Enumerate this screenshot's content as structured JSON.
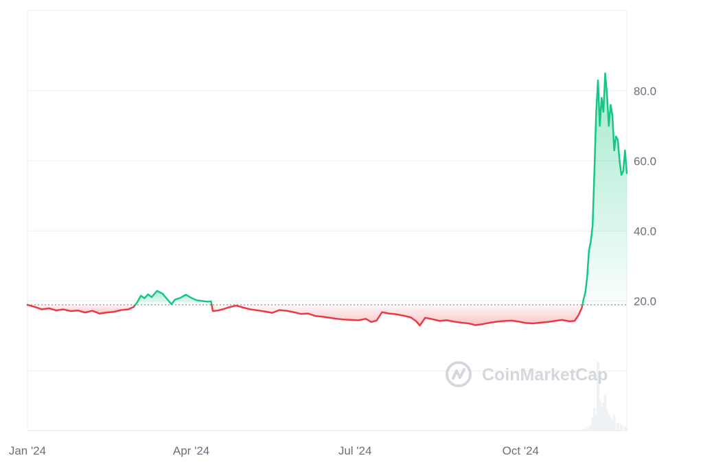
{
  "chart_data": {
    "type": "area",
    "baseline": 18.9,
    "ylim": [
      -17,
      103
    ],
    "y_ticks": [
      20,
      40,
      60,
      80
    ],
    "y_tick_labels": [
      "20.0",
      "40.0",
      "60.0",
      "80.0"
    ],
    "x_range": [
      "2024-01-01",
      "2024-11-29"
    ],
    "x_ticks": [
      "2024-01-01",
      "2024-04-01",
      "2024-07-01",
      "2024-10-01"
    ],
    "x_tick_labels": [
      "Jan '24",
      "Apr '24",
      "Jul '24",
      "Oct '24"
    ],
    "series": [
      {
        "points": [
          [
            "2024-01-01",
            18.9
          ],
          [
            "2024-01-05",
            18.3
          ],
          [
            "2024-01-09",
            17.6
          ],
          [
            "2024-01-13",
            17.9
          ],
          [
            "2024-01-17",
            17.3
          ],
          [
            "2024-01-21",
            17.6
          ],
          [
            "2024-01-25",
            17.1
          ],
          [
            "2024-01-29",
            17.3
          ],
          [
            "2024-02-02",
            16.7
          ],
          [
            "2024-02-06",
            17.2
          ],
          [
            "2024-02-10",
            16.4
          ],
          [
            "2024-02-14",
            16.7
          ],
          [
            "2024-02-18",
            16.9
          ],
          [
            "2024-02-22",
            17.4
          ],
          [
            "2024-02-26",
            17.6
          ],
          [
            "2024-02-29",
            18.3
          ],
          [
            "2024-03-02",
            19.6
          ],
          [
            "2024-03-04",
            21.5
          ],
          [
            "2024-03-06",
            20.8
          ],
          [
            "2024-03-08",
            21.9
          ],
          [
            "2024-03-10",
            21.1
          ],
          [
            "2024-03-13",
            22.9
          ],
          [
            "2024-03-16",
            22.1
          ],
          [
            "2024-03-19",
            20.3
          ],
          [
            "2024-03-21",
            19.1
          ],
          [
            "2024-03-23",
            20.4
          ],
          [
            "2024-03-26",
            20.9
          ],
          [
            "2024-03-29",
            21.8
          ],
          [
            "2024-04-01",
            20.9
          ],
          [
            "2024-04-04",
            20.2
          ],
          [
            "2024-04-07",
            20.0
          ],
          [
            "2024-04-10",
            19.8
          ],
          [
            "2024-04-12",
            19.9
          ],
          [
            "2024-04-13",
            17.1
          ],
          [
            "2024-04-16",
            17.3
          ],
          [
            "2024-04-19",
            17.7
          ],
          [
            "2024-04-22",
            18.2
          ],
          [
            "2024-04-26",
            18.7
          ],
          [
            "2024-04-30",
            18.1
          ],
          [
            "2024-05-04",
            17.6
          ],
          [
            "2024-05-08",
            17.3
          ],
          [
            "2024-05-12",
            17.0
          ],
          [
            "2024-05-16",
            16.6
          ],
          [
            "2024-05-20",
            17.4
          ],
          [
            "2024-05-24",
            17.2
          ],
          [
            "2024-05-28",
            16.8
          ],
          [
            "2024-06-01",
            16.3
          ],
          [
            "2024-06-05",
            16.4
          ],
          [
            "2024-06-09",
            15.7
          ],
          [
            "2024-06-13",
            15.5
          ],
          [
            "2024-06-17",
            15.2
          ],
          [
            "2024-06-21",
            14.9
          ],
          [
            "2024-06-25",
            14.7
          ],
          [
            "2024-06-29",
            14.6
          ],
          [
            "2024-07-03",
            14.5
          ],
          [
            "2024-07-07",
            14.9
          ],
          [
            "2024-07-10",
            14.0
          ],
          [
            "2024-07-13",
            14.4
          ],
          [
            "2024-07-16",
            16.8
          ],
          [
            "2024-07-20",
            16.4
          ],
          [
            "2024-07-24",
            16.2
          ],
          [
            "2024-07-28",
            15.8
          ],
          [
            "2024-08-01",
            15.3
          ],
          [
            "2024-08-04",
            14.2
          ],
          [
            "2024-08-06",
            13.0
          ],
          [
            "2024-08-09",
            15.2
          ],
          [
            "2024-08-13",
            14.8
          ],
          [
            "2024-08-17",
            14.3
          ],
          [
            "2024-08-21",
            14.5
          ],
          [
            "2024-08-25",
            14.1
          ],
          [
            "2024-08-29",
            13.8
          ],
          [
            "2024-09-02",
            13.6
          ],
          [
            "2024-09-06",
            13.1
          ],
          [
            "2024-09-10",
            13.4
          ],
          [
            "2024-09-14",
            13.8
          ],
          [
            "2024-09-18",
            14.1
          ],
          [
            "2024-09-22",
            14.3
          ],
          [
            "2024-09-26",
            14.4
          ],
          [
            "2024-09-30",
            14.1
          ],
          [
            "2024-10-04",
            13.7
          ],
          [
            "2024-10-08",
            13.6
          ],
          [
            "2024-10-12",
            13.8
          ],
          [
            "2024-10-16",
            14.0
          ],
          [
            "2024-10-20",
            14.3
          ],
          [
            "2024-10-24",
            14.6
          ],
          [
            "2024-10-28",
            14.2
          ],
          [
            "2024-10-31",
            14.3
          ],
          [
            "2024-11-02",
            15.8
          ],
          [
            "2024-11-04",
            18.0
          ],
          [
            "2024-11-05",
            20.5
          ],
          [
            "2024-11-06",
            22.5
          ],
          [
            "2024-11-07",
            27.0
          ],
          [
            "2024-11-08",
            34.5
          ],
          [
            "2024-11-09",
            37.0
          ],
          [
            "2024-11-10",
            41.5
          ],
          [
            "2024-11-11",
            57.0
          ],
          [
            "2024-11-12",
            74.0
          ],
          [
            "2024-11-13",
            83.0
          ],
          [
            "2024-11-14",
            70.0
          ],
          [
            "2024-11-15",
            78.0
          ],
          [
            "2024-11-16",
            74.0
          ],
          [
            "2024-11-17",
            85.0
          ],
          [
            "2024-11-18",
            79.0
          ],
          [
            "2024-11-19",
            70.0
          ],
          [
            "2024-11-20",
            76.0
          ],
          [
            "2024-11-21",
            73.0
          ],
          [
            "2024-11-22",
            63.0
          ],
          [
            "2024-11-23",
            67.0
          ],
          [
            "2024-11-24",
            66.0
          ],
          [
            "2024-11-25",
            60.0
          ],
          [
            "2024-11-26",
            56.0
          ],
          [
            "2024-11-27",
            57.0
          ],
          [
            "2024-11-28",
            63.0
          ],
          [
            "2024-11-29",
            56.5
          ]
        ]
      }
    ],
    "volume": {
      "points": [
        [
          "2024-11-05",
          0.3
        ],
        [
          "2024-11-07",
          0.6
        ],
        [
          "2024-11-09",
          1.0
        ],
        [
          "2024-11-10",
          2.5
        ],
        [
          "2024-11-11",
          4.5
        ],
        [
          "2024-11-12",
          3.2
        ],
        [
          "2024-11-13",
          13.5
        ],
        [
          "2024-11-14",
          6.0
        ],
        [
          "2024-11-15",
          4.5
        ],
        [
          "2024-11-16",
          5.5
        ],
        [
          "2024-11-17",
          7.0
        ],
        [
          "2024-11-18",
          4.0
        ],
        [
          "2024-11-19",
          3.2
        ],
        [
          "2024-11-20",
          2.6
        ],
        [
          "2024-11-21",
          2.0
        ],
        [
          "2024-11-22",
          3.0
        ],
        [
          "2024-11-24",
          1.5
        ],
        [
          "2024-11-26",
          1.2
        ],
        [
          "2024-11-28",
          0.8
        ],
        [
          "2024-11-29",
          0.5
        ]
      ]
    },
    "colors": {
      "up": "#16c784",
      "down": "#ea3943",
      "grid": "#eceef1",
      "baseline": "#6b6f7b",
      "volume": "#eef2f5"
    },
    "grid": true
  },
  "watermark": {
    "text": "CoinMarketCap",
    "icon": "coinmarketcap-logo-icon"
  }
}
